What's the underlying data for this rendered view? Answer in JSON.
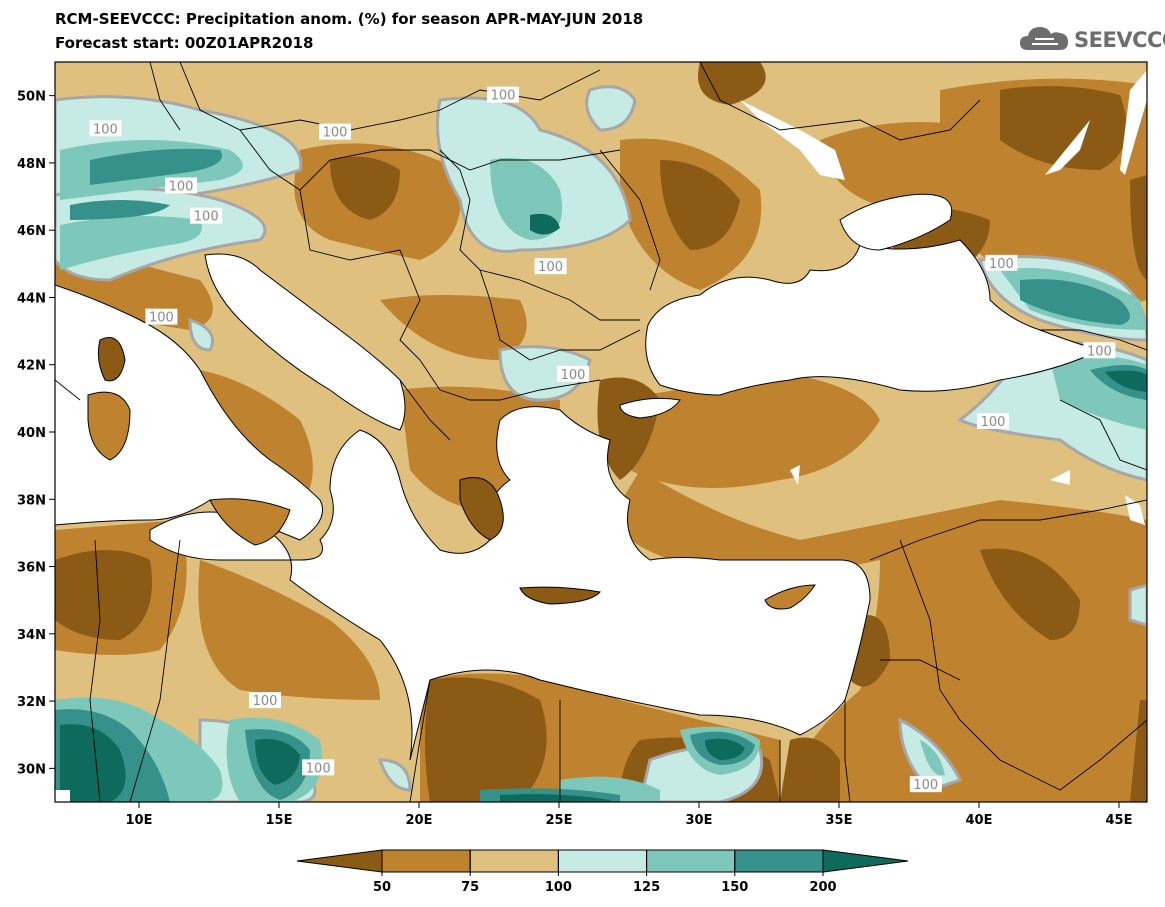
{
  "header": {
    "title_line1": "RCM-SEEVCCC: Precipitation anom. (%) for season APR-MAY-JUN 2018",
    "title_line2": "Forecast start: 00Z01APR2018",
    "logo_text": "SEEVCCC"
  },
  "map": {
    "lon_range": [
      7,
      46
    ],
    "lat_range": [
      29,
      51
    ],
    "lat_ticks": [
      {
        "value": 50,
        "label": "50N"
      },
      {
        "value": 48,
        "label": "48N"
      },
      {
        "value": 46,
        "label": "46N"
      },
      {
        "value": 44,
        "label": "44N"
      },
      {
        "value": 42,
        "label": "42N"
      },
      {
        "value": 40,
        "label": "40N"
      },
      {
        "value": 38,
        "label": "38N"
      },
      {
        "value": 36,
        "label": "36N"
      },
      {
        "value": 34,
        "label": "34N"
      },
      {
        "value": 32,
        "label": "32N"
      },
      {
        "value": 30,
        "label": "30N"
      }
    ],
    "lon_ticks": [
      {
        "value": 10,
        "label": "10E"
      },
      {
        "value": 15,
        "label": "15E"
      },
      {
        "value": 20,
        "label": "20E"
      },
      {
        "value": 25,
        "label": "25E"
      },
      {
        "value": 30,
        "label": "30E"
      },
      {
        "value": 35,
        "label": "35E"
      },
      {
        "value": 40,
        "label": "40E"
      },
      {
        "value": 45,
        "label": "45E"
      }
    ],
    "contour_labels": [
      {
        "lon": 23.0,
        "lat": 50.0,
        "text": "100"
      },
      {
        "lon": 8.8,
        "lat": 49.0,
        "text": "100"
      },
      {
        "lon": 17.0,
        "lat": 48.9,
        "text": "100"
      },
      {
        "lon": 11.5,
        "lat": 47.3,
        "text": "100"
      },
      {
        "lon": 12.4,
        "lat": 46.4,
        "text": "100"
      },
      {
        "lon": 24.7,
        "lat": 44.9,
        "text": "100"
      },
      {
        "lon": 10.8,
        "lat": 43.4,
        "text": "100"
      },
      {
        "lon": 25.5,
        "lat": 41.7,
        "text": "100"
      },
      {
        "lon": 40.8,
        "lat": 45.0,
        "text": "100"
      },
      {
        "lon": 44.3,
        "lat": 42.4,
        "text": "100"
      },
      {
        "lon": 40.5,
        "lat": 40.3,
        "text": "100"
      },
      {
        "lon": 14.5,
        "lat": 32.0,
        "text": "100"
      },
      {
        "lon": 16.4,
        "lat": 30.0,
        "text": "100"
      },
      {
        "lon": 38.1,
        "lat": 29.5,
        "text": "100"
      }
    ]
  },
  "legend": {
    "bins": [
      {
        "color": "#8b5a14",
        "label": "50"
      },
      {
        "color": "#bf822f",
        "label": "75"
      },
      {
        "color": "#dfc07e",
        "label": "100"
      },
      {
        "color": "#c5ebe4",
        "label": "125"
      },
      {
        "color": "#7ec8bb",
        "label": "150"
      },
      {
        "color": "#35918a",
        "label": "200"
      },
      {
        "color": "#0e6a5c",
        "label": ""
      }
    ]
  },
  "colors": {
    "very_dry": "#8b5a14",
    "dry": "#bf822f",
    "slightly_dry": "#dfc07e",
    "slightly_wet": "#c5ebe4",
    "wet": "#7ec8bb",
    "very_wet": "#35918a",
    "extremely_wet": "#0e6a5c",
    "contour": "#a7a7a7",
    "sea": "#ffffff",
    "border": "#000000"
  }
}
